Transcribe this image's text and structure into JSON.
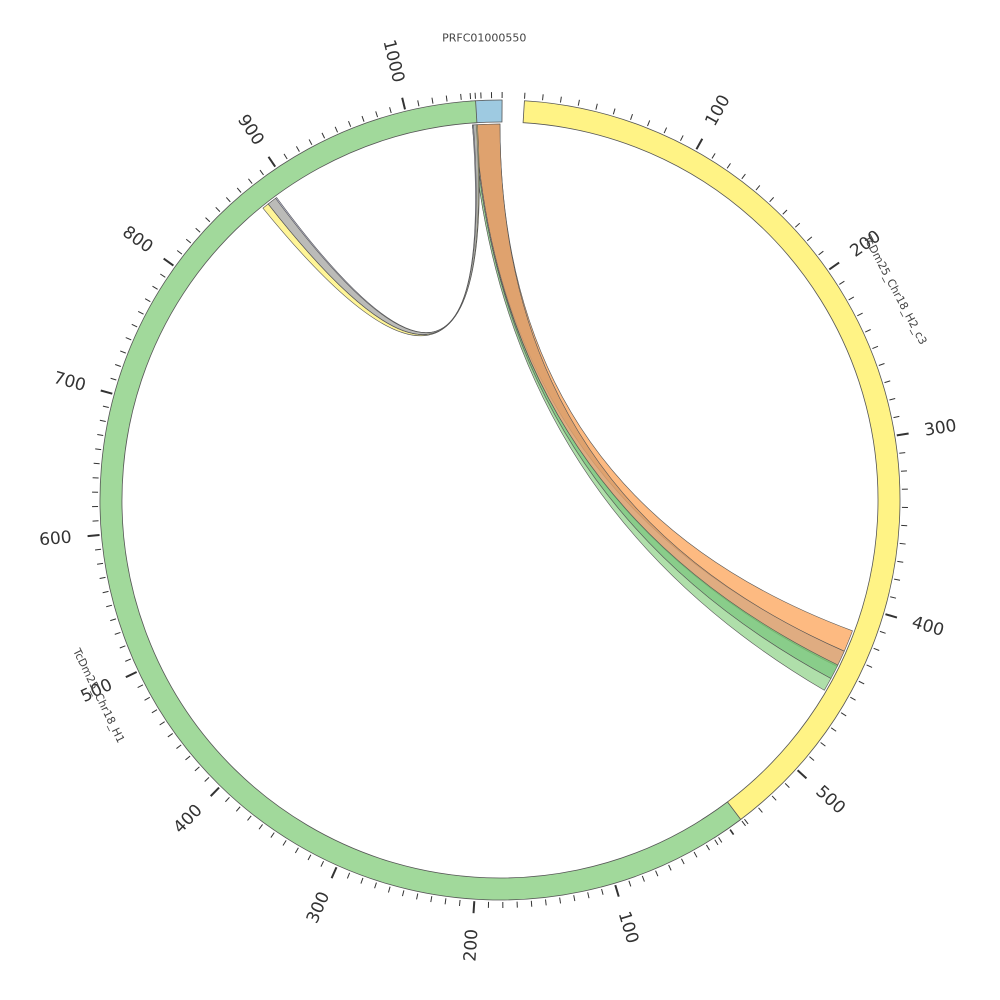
{
  "chart_data": {
    "type": "chord",
    "segments": [
      {
        "id": "top",
        "name": "PRFC01000550",
        "length": 30,
        "color": "#9ecae1",
        "ticks": []
      },
      {
        "id": "h2",
        "name": "TcDm25_Chr18_H2_c3",
        "length": 560,
        "color": "#fff385",
        "ticks": [
          {
            "value": 100,
            "label": "100"
          },
          {
            "value": 200,
            "label": "200"
          },
          {
            "value": 300,
            "label": "300"
          },
          {
            "value": 400,
            "label": "400"
          },
          {
            "value": 500,
            "label": "500"
          }
        ]
      },
      {
        "id": "h1",
        "name": "TcDm25_Chr18_H1",
        "length": 1050,
        "color": "#a1d99b",
        "ticks": [
          {
            "value": 100,
            "label": "100"
          },
          {
            "value": 200,
            "label": "200"
          },
          {
            "value": 300,
            "label": "300"
          },
          {
            "value": 400,
            "label": "400"
          },
          {
            "value": 500,
            "label": "500"
          },
          {
            "value": 600,
            "label": "600"
          },
          {
            "value": 700,
            "label": "700"
          },
          {
            "value": 800,
            "label": "800"
          },
          {
            "value": 900,
            "label": "900"
          },
          {
            "value": 1000,
            "label": "1000"
          }
        ]
      }
    ],
    "links": [
      {
        "a": "top",
        "a_start": 3,
        "a_end": 28,
        "b": "h2",
        "b_start": 415,
        "b_end": 428,
        "color": "#fdae6b"
      },
      {
        "a": "top",
        "a_start": 3,
        "a_end": 28,
        "b": "h2",
        "b_start": 428,
        "b_end": 438,
        "color": "#d99e6b"
      },
      {
        "a": "top",
        "a_start": 0,
        "a_end": 2,
        "b": "h2",
        "b_start": 437,
        "b_end": 446,
        "color": "#74c476"
      },
      {
        "a": "top",
        "a_start": 0,
        "a_end": 2,
        "b": "h2",
        "b_start": 446,
        "b_end": 454,
        "color": "#a1d99b"
      },
      {
        "a": "top",
        "a_start": 2,
        "a_end": 5,
        "b": "h1",
        "b_start": 875,
        "b_end": 880,
        "color": "#fff385"
      },
      {
        "a": "top",
        "a_start": 0,
        "a_end": 3,
        "b": "h1",
        "b_start": 880,
        "b_end": 888,
        "color": "#bcbddc"
      },
      {
        "a": "top",
        "a_start": 1,
        "a_end": 4,
        "b": "h1",
        "b_start": 880,
        "b_end": 887,
        "color": "#b8b8b0"
      }
    ]
  }
}
